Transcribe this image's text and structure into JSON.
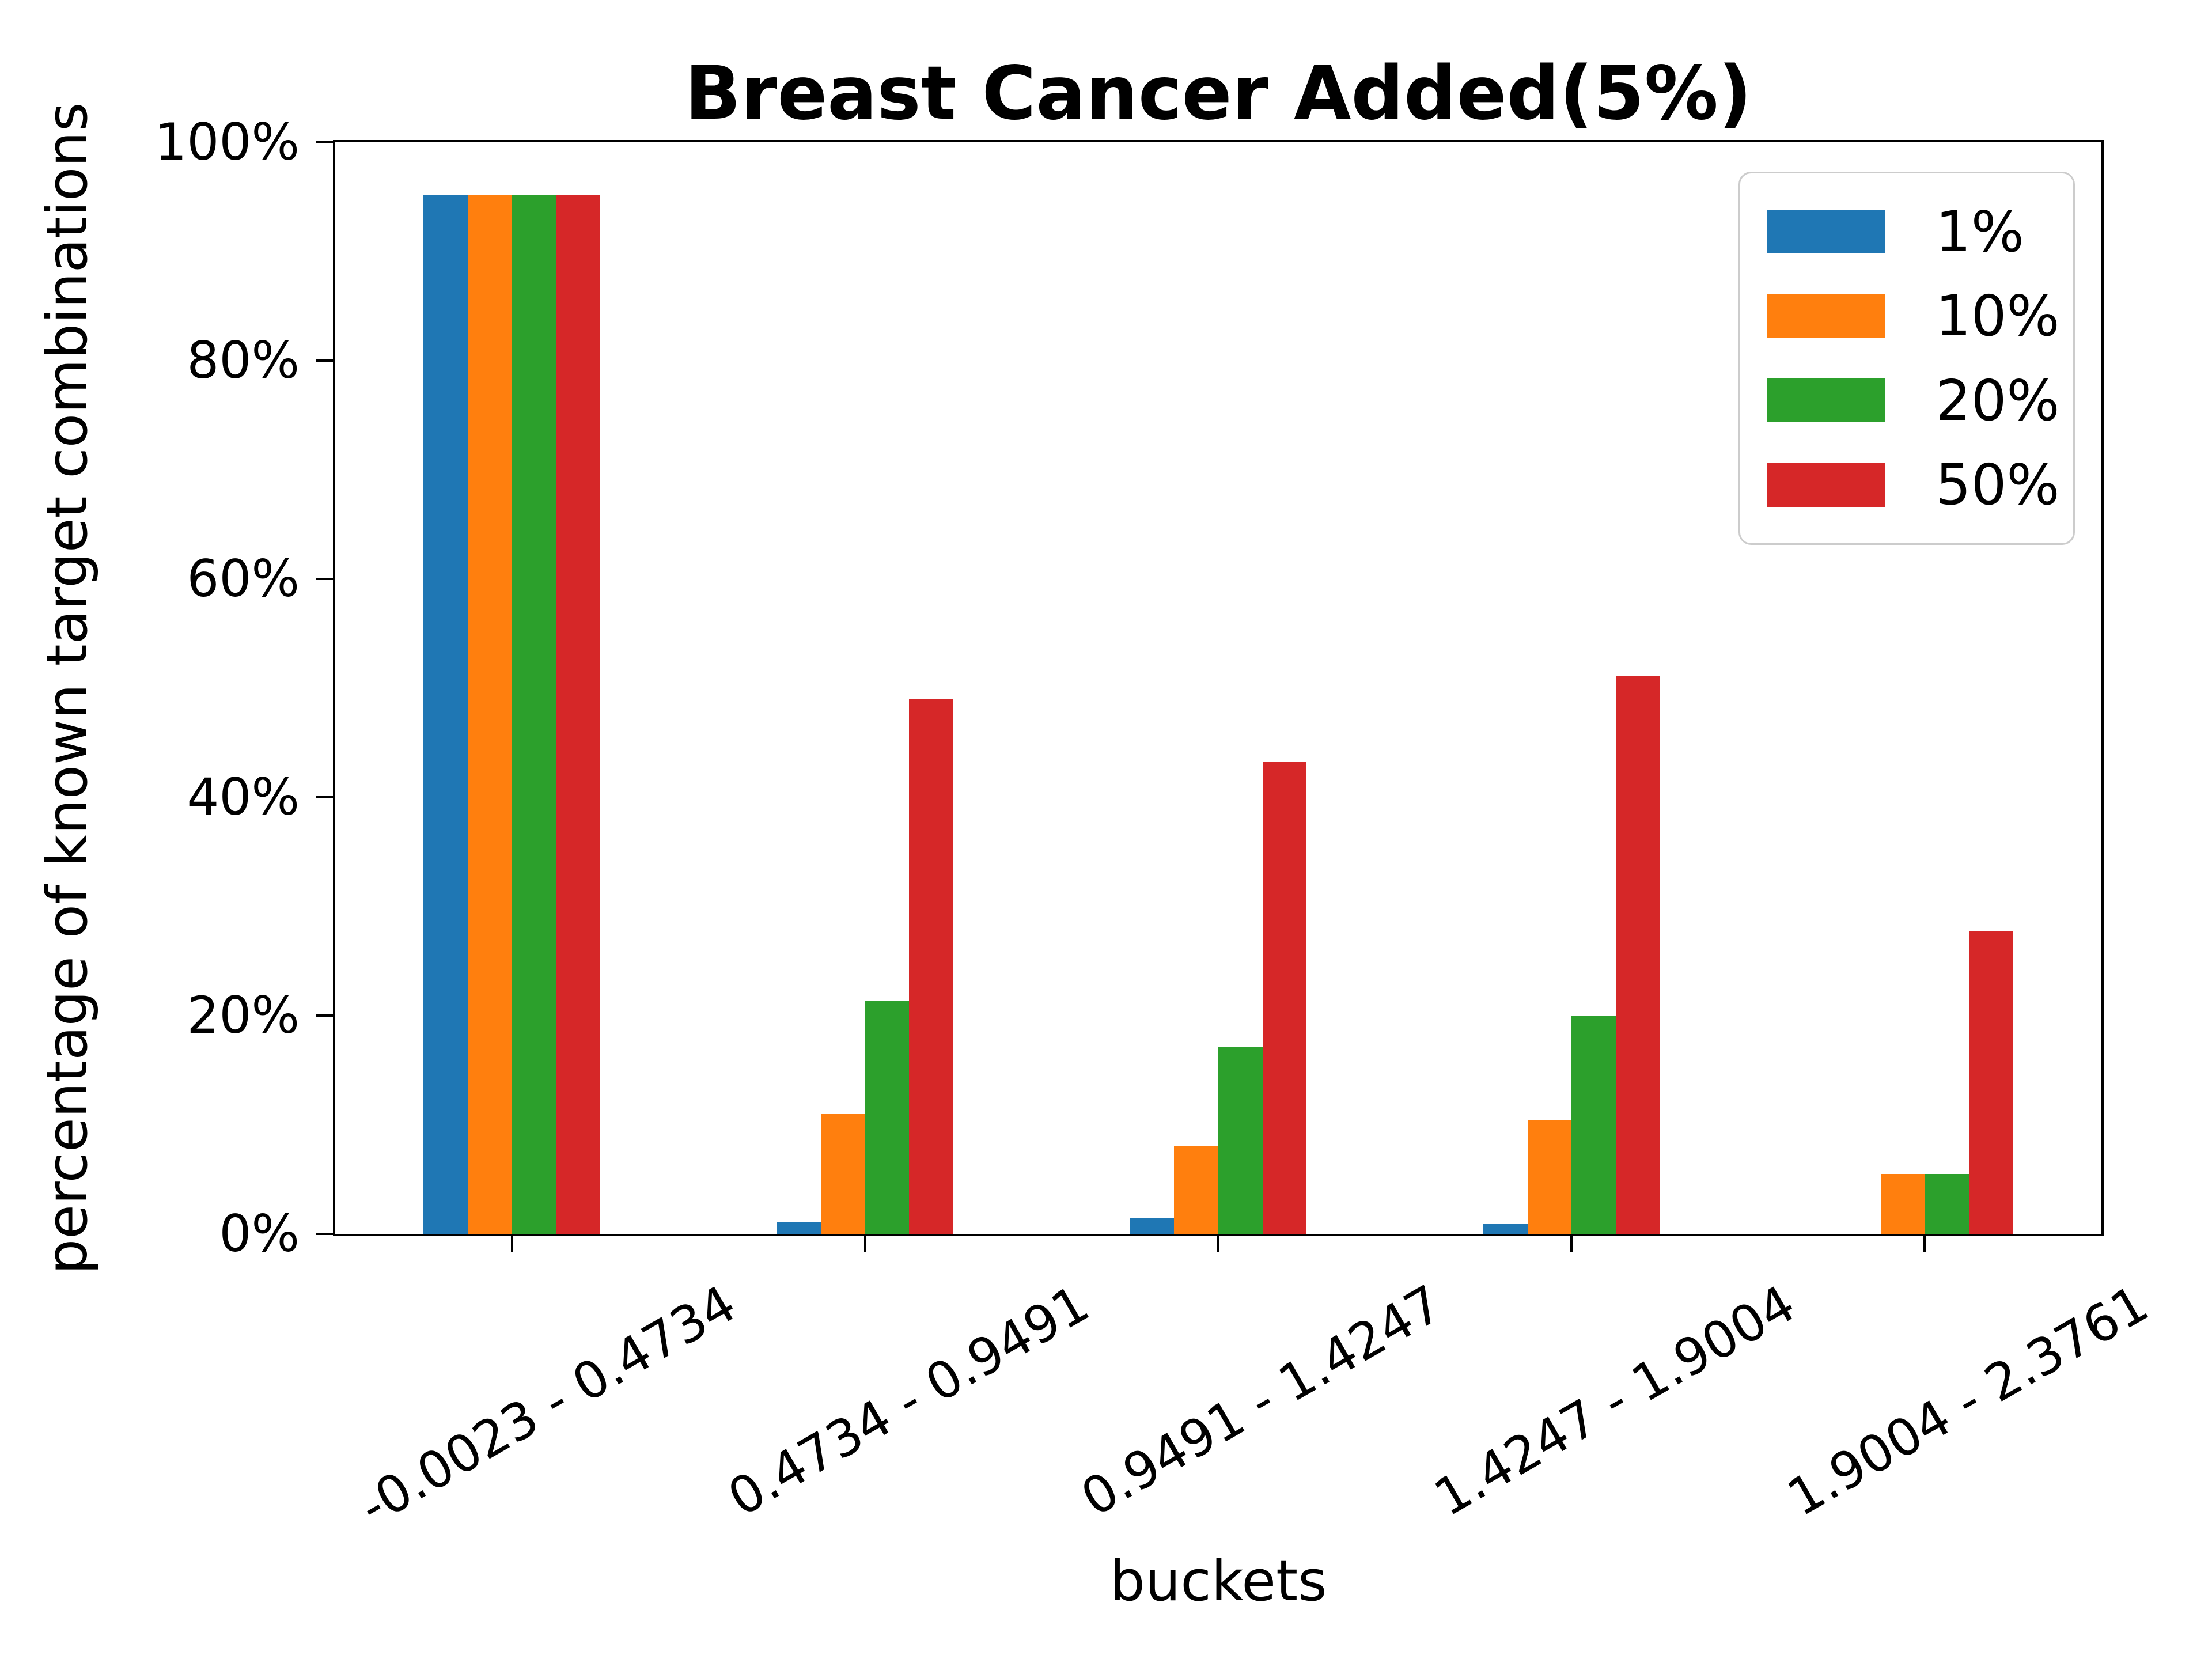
{
  "title": "Breast Cancer Added(5%)",
  "chart_data": {
    "type": "bar",
    "title": "Breast Cancer Added(5%)",
    "xlabel": "buckets",
    "ylabel": "percentage of known target combinations",
    "categories": [
      "-0.0023 - 0.4734",
      "0.4734 - 0.9491",
      "0.9491 - 1.4247",
      "1.4247 - 1.9004",
      "1.9004 - 2.3761"
    ],
    "series": [
      {
        "name": "1%",
        "color": "#1f77b4",
        "values": [
          95.2,
          1.1,
          1.4,
          0.9,
          0
        ]
      },
      {
        "name": "10%",
        "color": "#ff7f0e",
        "values": [
          95.2,
          11.0,
          8.0,
          10.4,
          5.5
        ]
      },
      {
        "name": "20%",
        "color": "#2ca02c",
        "values": [
          95.2,
          21.3,
          17.1,
          20.0,
          5.5
        ]
      },
      {
        "name": "50%",
        "color": "#d62728",
        "values": [
          95.2,
          49.0,
          43.2,
          51.1,
          27.7
        ]
      }
    ],
    "ylim": [
      0,
      100
    ],
    "yticks": [
      "0%",
      "20%",
      "40%",
      "60%",
      "80%",
      "100%"
    ],
    "ytick_values": [
      0,
      20,
      40,
      60,
      80,
      100
    ],
    "grid": false,
    "legend_position": "upper right",
    "axis_color": "#000000",
    "legend_border_color": "#cccccc",
    "background_color": "#ffffff"
  }
}
